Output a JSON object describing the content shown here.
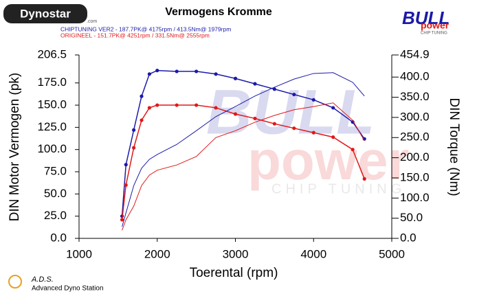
{
  "chart_data": {
    "type": "line",
    "title": "Vermogens Kromme",
    "x_label": "Toerental (rpm)",
    "y_label": "DIN Motor Vermogen (pk)",
    "y2_label": "DIN Torque (Nm)",
    "x": [
      1550,
      1600,
      1700,
      1800,
      1900,
      2000,
      2250,
      2500,
      2750,
      3000,
      3250,
      3500,
      3750,
      4000,
      4250,
      4500,
      4650
    ],
    "xlim": [
      1000,
      5000
    ],
    "xticks": [
      1000,
      2000,
      3000,
      4000,
      5000
    ],
    "ylim": [
      0,
      206.5
    ],
    "yticks": [
      {
        "value": 0,
        "label": "0.0"
      },
      {
        "value": 25,
        "label": "25.0"
      },
      {
        "value": 50,
        "label": "50.0"
      },
      {
        "value": 75,
        "label": "75.0"
      },
      {
        "value": 100,
        "label": "100.0"
      },
      {
        "value": 125,
        "label": "125.0"
      },
      {
        "value": 150,
        "label": "150.0"
      },
      {
        "value": 175,
        "label": "175.0"
      },
      206.5
    ],
    "y2lim": [
      0,
      454.9
    ],
    "y2ticks": [
      {
        "value": 0,
        "label": "0.0"
      },
      {
        "value": 50,
        "label": "50.0"
      },
      {
        "value": 100,
        "label": "100.0"
      },
      {
        "value": 150,
        "label": "150.0"
      },
      {
        "value": 200,
        "label": "200.0"
      },
      {
        "value": 250,
        "label": "250.0"
      },
      {
        "value": 300,
        "label": "300.0"
      },
      {
        "value": 350,
        "label": "350.0"
      },
      {
        "value": 400,
        "label": "400.0"
      },
      454.9
    ],
    "series": [
      {
        "name": "CHIPTUNING VER2 - 187.7PK@ 4175rpm / 413.5Nm@ 1979rpm",
        "color": "#1a1aa8",
        "markers": true,
        "values": [
          25,
          83,
          122,
          160,
          185,
          189,
          188,
          188,
          185,
          180,
          174,
          168,
          162,
          156,
          147,
          131,
          112
        ]
      },
      {
        "name": "ORIGINEEL - 151.7PK@ 4251rpm / 331.5Nm@ 2555rpm",
        "color": "#e01818",
        "markers": true,
        "values": [
          21,
          60,
          102,
          133,
          147,
          150,
          150,
          150,
          147,
          140,
          135,
          129,
          124,
          119,
          114,
          100,
          67
        ]
      },
      {
        "color": "#1a1aa8",
        "axis": "y2",
        "markers": false,
        "values": [
          29,
          63,
          131,
          174,
          196,
          208,
          233,
          267,
          302,
          327,
          353,
          375,
          395,
          409,
          411,
          387,
          353
        ]
      },
      {
        "color": "#e01818",
        "axis": "y2",
        "markers": false,
        "values": [
          20,
          46,
          80,
          131,
          157,
          169,
          182,
          203,
          250,
          267,
          288,
          305,
          319,
          327,
          336,
          293,
          242
        ]
      }
    ]
  },
  "logos": {
    "dynostar": "Dynostar",
    "dynostar_suffix": ".com",
    "brand": "BULL",
    "brand2": "power",
    "tagline": "CHIP TUNING",
    "ads": "A.D.S.",
    "ads_sub": "Advanced Dyno Station"
  }
}
